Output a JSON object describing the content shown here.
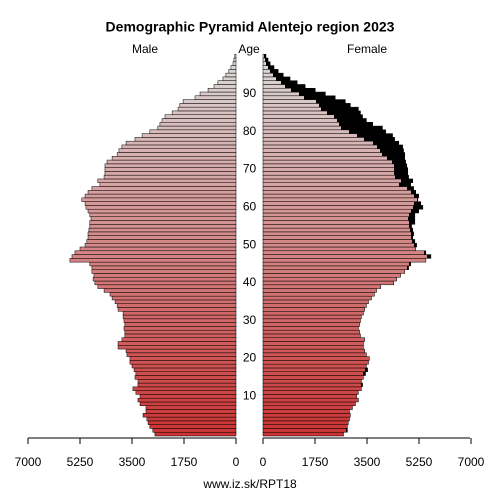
{
  "chart_data": {
    "type": "pyramid",
    "title": "Demographic Pyramid Alentejo region 2023",
    "left_label": "Male",
    "center_label": "Age",
    "right_label": "Female",
    "footer": "www.iz.sk/RPT18",
    "categories": [
      0,
      1,
      2,
      3,
      4,
      5,
      6,
      7,
      8,
      9,
      10,
      11,
      12,
      13,
      14,
      15,
      16,
      17,
      18,
      19,
      20,
      21,
      22,
      23,
      24,
      25,
      26,
      27,
      28,
      29,
      30,
      31,
      32,
      33,
      34,
      35,
      36,
      37,
      38,
      39,
      40,
      41,
      42,
      43,
      44,
      45,
      46,
      47,
      48,
      49,
      50,
      51,
      52,
      53,
      54,
      55,
      56,
      57,
      58,
      59,
      60,
      61,
      62,
      63,
      64,
      65,
      66,
      67,
      68,
      69,
      70,
      71,
      72,
      73,
      74,
      75,
      76,
      77,
      78,
      79,
      80,
      81,
      82,
      83,
      84,
      85,
      86,
      87,
      88,
      89,
      90,
      91,
      92,
      93,
      94,
      95,
      96,
      97,
      98,
      99,
      100
    ],
    "series": [
      {
        "name": "Male",
        "values": [
          2730,
          2800,
          2900,
          2960,
          3000,
          3130,
          3030,
          3030,
          3230,
          3300,
          3230,
          3370,
          3470,
          3300,
          3300,
          3400,
          3370,
          3430,
          3500,
          3570,
          3570,
          3670,
          3700,
          3970,
          3970,
          3840,
          3740,
          3740,
          3770,
          3740,
          3770,
          3800,
          3800,
          3970,
          4000,
          4070,
          4170,
          4240,
          4440,
          4650,
          4750,
          4810,
          4780,
          4850,
          4850,
          4920,
          5590,
          5520,
          5420,
          5250,
          5080,
          5020,
          4980,
          4980,
          4950,
          4920,
          4920,
          4880,
          4920,
          4980,
          5050,
          5080,
          5190,
          5080,
          4980,
          4850,
          4580,
          4650,
          4440,
          4410,
          4410,
          4410,
          4340,
          4170,
          4000,
          3940,
          3840,
          3700,
          3400,
          3160,
          2900,
          2630,
          2560,
          2490,
          2390,
          2150,
          1950,
          1890,
          1780,
          1380,
          1210,
          940,
          740,
          610,
          440,
          340,
          240,
          170,
          100,
          70,
          40
        ]
      },
      {
        "name": "Female",
        "values": [
          2710,
          2840,
          2840,
          2870,
          2910,
          2940,
          2910,
          3010,
          3110,
          3210,
          3150,
          3210,
          3310,
          3350,
          3310,
          3380,
          3450,
          3520,
          3480,
          3550,
          3580,
          3480,
          3420,
          3380,
          3380,
          3420,
          3280,
          3250,
          3210,
          3250,
          3280,
          3310,
          3380,
          3420,
          3480,
          3550,
          3650,
          3750,
          3820,
          3960,
          4400,
          4500,
          4630,
          4770,
          4900,
          4970,
          5480,
          5650,
          5480,
          5140,
          5170,
          5110,
          5040,
          5070,
          5040,
          5000,
          5110,
          5110,
          5110,
          5240,
          5380,
          5310,
          5210,
          5240,
          5140,
          5070,
          4970,
          5040,
          4900,
          4870,
          4870,
          4840,
          4800,
          4770,
          4770,
          4730,
          4700,
          4570,
          4430,
          4360,
          4130,
          4020,
          3690,
          3480,
          3350,
          3280,
          3210,
          2940,
          2770,
          2430,
          2100,
          1760,
          1420,
          1150,
          910,
          680,
          510,
          370,
          240,
          170,
          100
        ]
      }
    ],
    "gradient": [
      "#cc3333",
      "#dcdcdc"
    ],
    "excess_color": "#000000",
    "xlim": [
      0,
      7000
    ],
    "xticks": [
      0,
      1750,
      3500,
      5250,
      7000
    ],
    "yticks": [
      10,
      20,
      30,
      40,
      50,
      60,
      70,
      80,
      90
    ]
  }
}
